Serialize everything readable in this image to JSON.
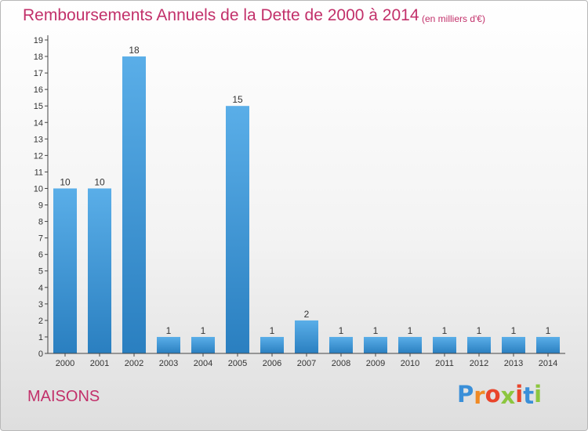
{
  "chart_data": {
    "type": "bar",
    "title": "Remboursements Annuels de la Dette de 2000 à 2014",
    "subtitle": "(en milliers d'€)",
    "categories": [
      "2000",
      "2001",
      "2002",
      "2003",
      "2004",
      "2005",
      "2006",
      "2007",
      "2008",
      "2009",
      "2010",
      "2011",
      "2012",
      "2013",
      "2014"
    ],
    "values": [
      10,
      10,
      18,
      1,
      1,
      15,
      1,
      2,
      1,
      1,
      1,
      1,
      1,
      1,
      1
    ],
    "data_labels": [
      "10",
      "10",
      "18",
      "1",
      "1",
      "15",
      "1",
      "2",
      "1",
      "1",
      "1",
      "1",
      "1",
      "1",
      "1"
    ],
    "yticks": [
      "0",
      "1",
      "2",
      "3",
      "4",
      "5",
      "6",
      "7",
      "8",
      "9",
      "10",
      "11",
      "12",
      "13",
      "14",
      "15",
      "16",
      "17",
      "18",
      "19"
    ],
    "ylim": [
      0,
      19
    ],
    "xlabel": "",
    "ylabel": "",
    "grid": false,
    "legend": "none"
  },
  "footer": {
    "commune": "MAISONS",
    "logo_letters": [
      "P",
      "r",
      "o",
      "x",
      "i",
      "t",
      "i"
    ]
  },
  "colors": {
    "title": "#c2306a",
    "bar_top": "#5aaee8",
    "bar_bottom": "#2a7fc0",
    "axis": "#444444",
    "label": "#333333",
    "logo": [
      "#3a8fd8",
      "#f08a24",
      "#e9452b",
      "#8cc63f",
      "#e9452b",
      "#3a8fd8",
      "#8cc63f"
    ]
  }
}
